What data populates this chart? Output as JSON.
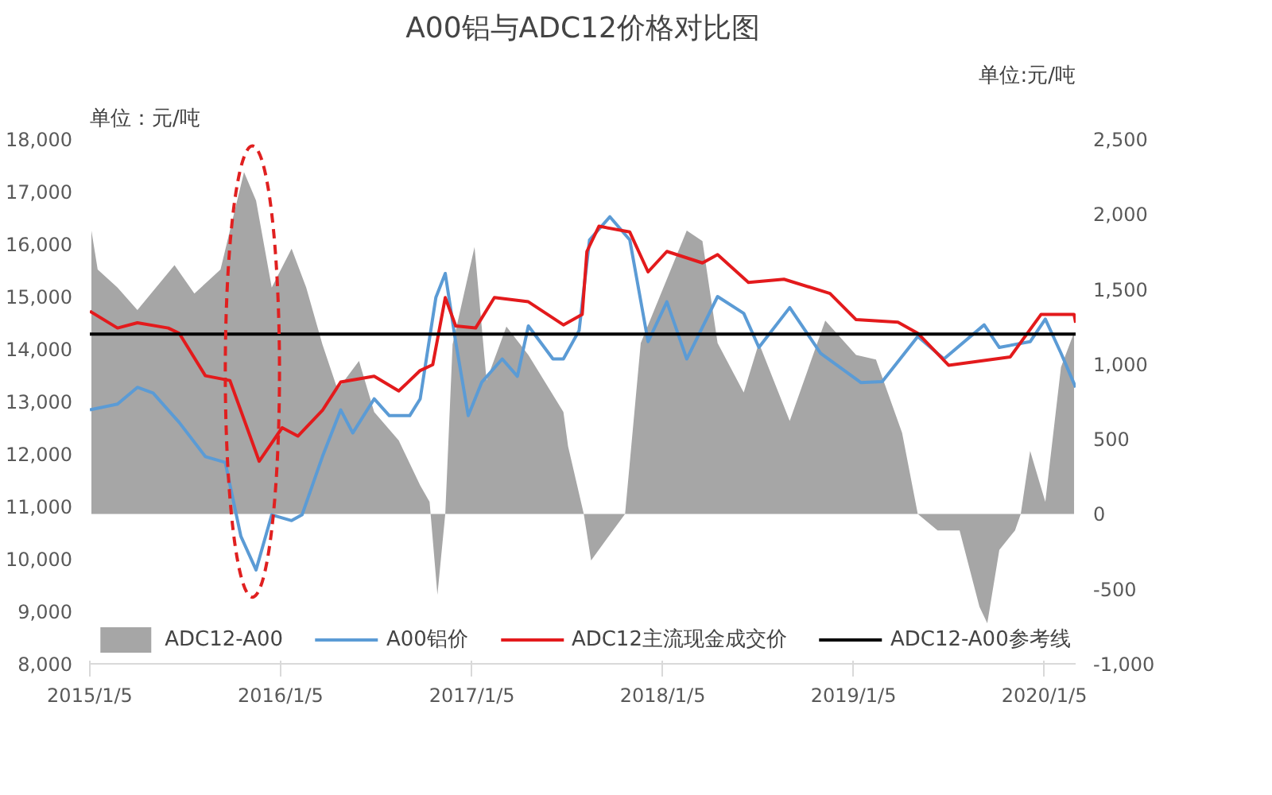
{
  "chart_data": {
    "type": "line",
    "title": "A00铝与ADC12价格对比图",
    "ylabel": "单位：元/吨",
    "y2label": "单位:元/吨",
    "xlim": [
      "2015-01-05",
      "2020-03-05"
    ],
    "xticks": [
      {
        "value": "2015-01-05",
        "label": "2015/1/5"
      },
      {
        "value": "2016-01-05",
        "label": "2016/1/5"
      },
      {
        "value": "2017-01-05",
        "label": "2017/1/5"
      },
      {
        "value": "2018-01-05",
        "label": "2018/1/5"
      },
      {
        "value": "2019-01-05",
        "label": "2019/1/5"
      },
      {
        "value": "2020-01-05",
        "label": "2020/1/5"
      }
    ],
    "ylim": [
      8000,
      18000
    ],
    "yticks": [
      {
        "value": 8000,
        "label": "8,000"
      },
      {
        "value": 9000,
        "label": "9,000"
      },
      {
        "value": 10000,
        "label": "10,000"
      },
      {
        "value": 11000,
        "label": "11,000"
      },
      {
        "value": 12000,
        "label": "12,000"
      },
      {
        "value": 13000,
        "label": "13,000"
      },
      {
        "value": 14000,
        "label": "14,000"
      },
      {
        "value": 15000,
        "label": "15,000"
      },
      {
        "value": 16000,
        "label": "16,000"
      },
      {
        "value": 17000,
        "label": "17,000"
      },
      {
        "value": 18000,
        "label": "18,000"
      }
    ],
    "y2lim": [
      -1000,
      2500
    ],
    "y2ticks": [
      {
        "value": -1000,
        "label": "-1,000"
      },
      -500,
      0,
      500,
      {
        "value": 1000,
        "label": "1,000"
      },
      {
        "value": 1500,
        "label": "1,500"
      },
      {
        "value": 2000,
        "label": "2,000"
      },
      {
        "value": 2500,
        "label": "2,500"
      }
    ],
    "series": [
      {
        "name": "ADC12-A00",
        "type": "area",
        "axis": "y2",
        "color": "#a6a6a6",
        "x": [
          "2015-01-08",
          "2015-01-20",
          "2015-02-27",
          "2015-04-06",
          "2015-06-16",
          "2015-07-24",
          "2015-09-12",
          "2015-10-27",
          "2015-11-19",
          "2015-12-19",
          "2016-01-26",
          "2016-02-23",
          "2016-03-25",
          "2016-04-23",
          "2016-06-03",
          "2016-07-02",
          "2016-08-18",
          "2016-09-28",
          "2016-10-16",
          "2016-10-31",
          "2016-11-15",
          "2016-11-29",
          "2017-01-10",
          "2017-02-02",
          "2017-03-12",
          "2017-04-23",
          "2017-06-29",
          "2017-07-08",
          "2017-08-07",
          "2017-08-21",
          "2017-10-25",
          "2017-11-24",
          "2018-02-20",
          "2018-03-22",
          "2018-04-20",
          "2018-06-09",
          "2018-07-08",
          "2018-09-05",
          "2018-11-12",
          "2019-01-10",
          "2019-02-17",
          "2019-04-08",
          "2019-05-08",
          "2019-06-15",
          "2019-07-27",
          "2019-09-03",
          "2019-09-18",
          "2019-10-11",
          "2019-11-10",
          "2019-11-21",
          "2019-12-09",
          "2020-01-07",
          "2020-02-06",
          "2020-03-02"
        ],
        "values": [
          1890,
          1630,
          1510,
          1360,
          1660,
          1470,
          1630,
          2280,
          2090,
          1510,
          1770,
          1510,
          1130,
          830,
          1020,
          680,
          490,
          190,
          80,
          -540,
          0,
          1130,
          1780,
          890,
          1250,
          1060,
          680,
          450,
          0,
          -310,
          0,
          1140,
          1890,
          1820,
          1140,
          810,
          1140,
          620,
          1290,
          1060,
          1030,
          540,
          0,
          -110,
          -110,
          -620,
          -730,
          -240,
          -110,
          0,
          420,
          80,
          980,
          1210
        ]
      },
      {
        "name": "A00铝价",
        "color": "#5b9bd5",
        "x": [
          "2015-01-05",
          "2015-02-27",
          "2015-04-06",
          "2015-05-06",
          "2015-06-25",
          "2015-08-14",
          "2015-09-21",
          "2015-10-21",
          "2015-11-19",
          "2015-12-19",
          "2016-01-26",
          "2016-02-15",
          "2016-03-25",
          "2016-04-29",
          "2016-05-22",
          "2016-07-02",
          "2016-07-31",
          "2016-09-08",
          "2016-09-28",
          "2016-10-28",
          "2016-11-15",
          "2016-12-05",
          "2016-12-29",
          "2017-01-24",
          "2017-03-04",
          "2017-04-02",
          "2017-04-23",
          "2017-06-09",
          "2017-06-29",
          "2017-07-29",
          "2017-08-18",
          "2017-09-26",
          "2017-11-03",
          "2017-12-08",
          "2018-01-13",
          "2018-02-20",
          "2018-04-20",
          "2018-06-09",
          "2018-07-08",
          "2018-09-05",
          "2018-11-03",
          "2019-01-19",
          "2019-03-01",
          "2019-05-08",
          "2019-06-27",
          "2019-09-12",
          "2019-10-11",
          "2019-12-09",
          "2020-01-07",
          "2020-02-06",
          "2020-03-05"
        ],
        "values": [
          12840,
          12950,
          13270,
          13160,
          12600,
          11950,
          11840,
          10430,
          9790,
          10840,
          10730,
          10840,
          11950,
          12840,
          12400,
          13050,
          12730,
          12730,
          13050,
          14980,
          15440,
          14130,
          12730,
          13370,
          13810,
          13480,
          14440,
          13810,
          13810,
          14350,
          16080,
          16520,
          16080,
          14140,
          14900,
          13810,
          15000,
          14680,
          14030,
          14790,
          13920,
          13360,
          13380,
          14240,
          13810,
          14460,
          14030,
          14140,
          14570,
          13920,
          13270
        ]
      },
      {
        "name": "ADC12主流现金成交价",
        "color": "#e31a1c",
        "x": [
          "2015-01-05",
          "2015-02-27",
          "2015-04-06",
          "2015-06-04",
          "2015-06-25",
          "2015-08-14",
          "2015-09-30",
          "2015-11-25",
          "2016-01-08",
          "2016-02-07",
          "2016-03-25",
          "2016-04-29",
          "2016-07-02",
          "2016-08-18",
          "2016-09-28",
          "2016-10-22",
          "2016-11-15",
          "2016-12-05",
          "2017-01-12",
          "2017-02-17",
          "2017-04-23",
          "2017-06-29",
          "2017-08-04",
          "2017-08-13",
          "2017-09-05",
          "2017-11-03",
          "2017-12-08",
          "2018-01-13",
          "2018-03-22",
          "2018-04-20",
          "2018-06-18",
          "2018-08-25",
          "2018-11-21",
          "2019-01-10",
          "2019-03-31",
          "2019-05-08",
          "2019-07-06",
          "2019-11-01",
          "2019-12-30",
          "2020-03-02",
          "2020-03-05"
        ],
        "values": [
          14720,
          14400,
          14500,
          14400,
          14300,
          13490,
          13400,
          11860,
          12500,
          12340,
          12830,
          13370,
          13480,
          13200,
          13590,
          13700,
          14980,
          14440,
          14400,
          14980,
          14900,
          14460,
          14660,
          15860,
          16340,
          16230,
          15470,
          15860,
          15640,
          15800,
          15270,
          15330,
          15060,
          14560,
          14510,
          14300,
          13690,
          13850,
          14660,
          14660,
          14500
        ]
      }
    ],
    "ref_lines": [
      {
        "axis": "y2",
        "value": 1200,
        "label": "ADC12-A00参考线",
        "color": "#000000"
      }
    ],
    "grid": false,
    "legend": "bottom"
  }
}
